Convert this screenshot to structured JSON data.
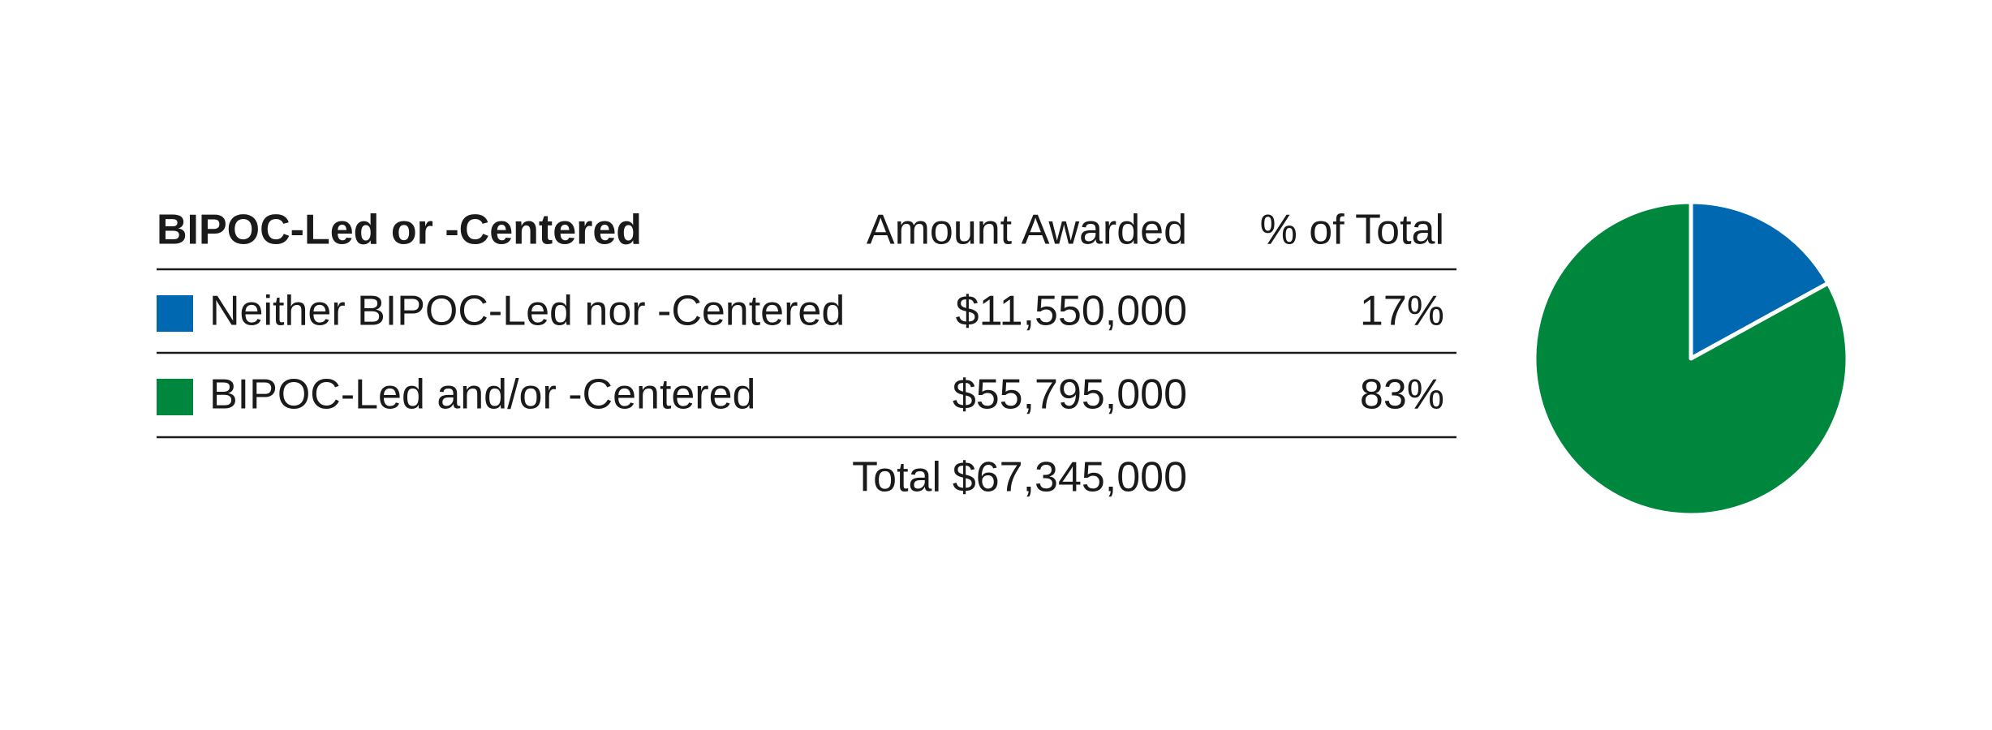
{
  "table": {
    "title": "BIPOC-Led or -Centered",
    "columns": [
      "Amount Awarded",
      "% of Total"
    ],
    "amounts": [
      "$11,550,000",
      "$55,795,000"
    ],
    "total_label": "Total",
    "total_amount": "$67,345,000"
  },
  "chart_data": {
    "type": "pie",
    "categories": [
      "Neither BIPOC-Led nor -Centered",
      "BIPOC-Led and/or -Centered"
    ],
    "values": [
      17,
      83
    ],
    "value_labels": [
      "17%",
      "83%"
    ],
    "colors": [
      "#0067b1",
      "#00873e"
    ]
  }
}
